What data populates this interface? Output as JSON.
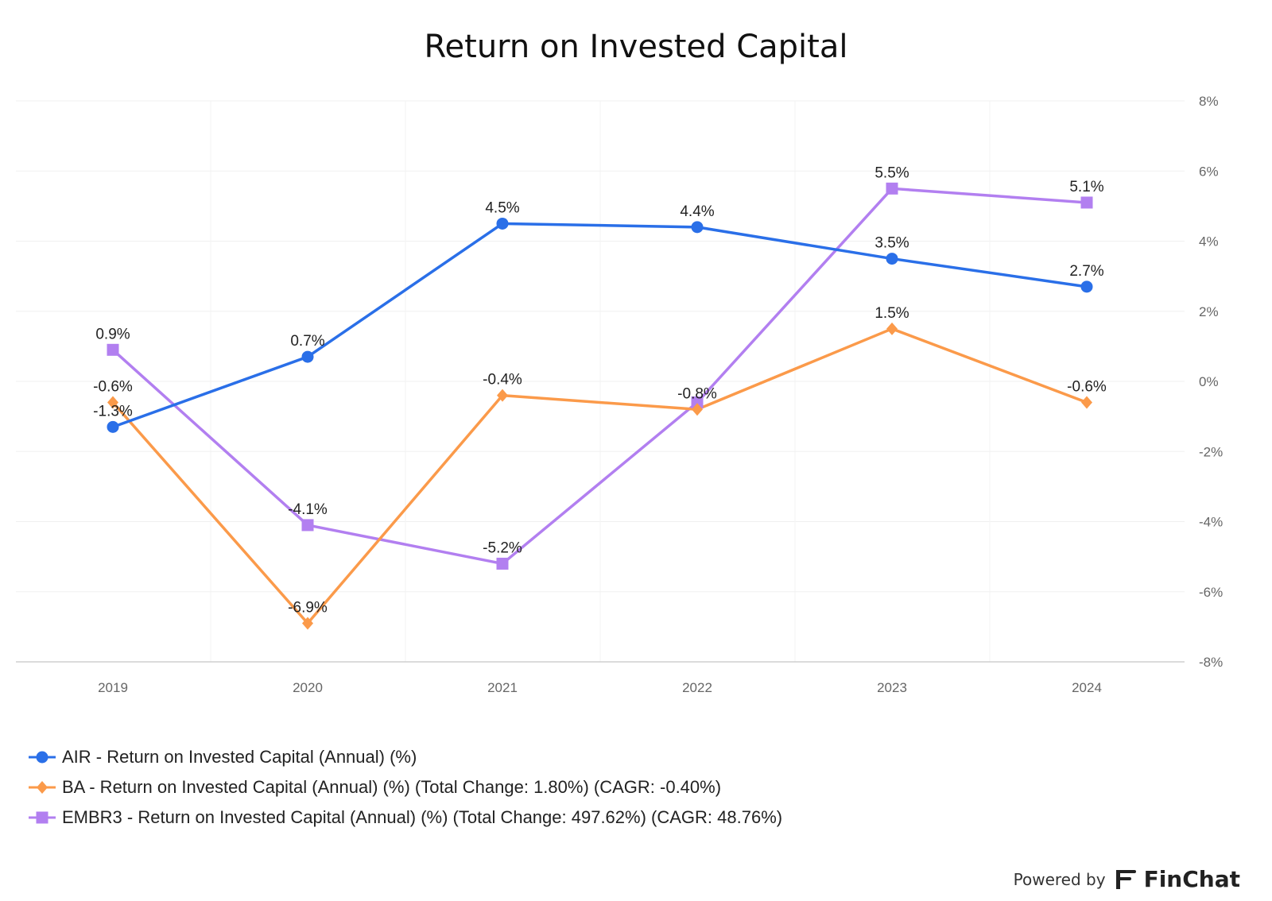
{
  "chart_data": {
    "type": "line",
    "title": "Return on Invested Capital",
    "categories": [
      "2019",
      "2020",
      "2021",
      "2022",
      "2023",
      "2024"
    ],
    "y_axis": {
      "position": "right",
      "min": -8,
      "max": 8,
      "step": 2,
      "tick_labels": [
        "8%",
        "6%",
        "4%",
        "2%",
        "0%",
        "-2%",
        "-4%",
        "-6%",
        "-8%"
      ]
    },
    "grid": true,
    "legend_position": "bottom-left",
    "series": [
      {
        "name": "AIR - Return on Invested Capital (Annual) (%)",
        "color": "#2a6fe8",
        "marker": "circle",
        "values": [
          -1.3,
          0.7,
          4.5,
          4.4,
          3.5,
          2.7
        ],
        "labels": [
          "-1.3%",
          "0.7%",
          "4.5%",
          "4.4%",
          "3.5%",
          "2.7%"
        ]
      },
      {
        "name": "BA - Return on Invested Capital (Annual) (%) (Total Change: 1.80%) (CAGR: -0.40%)",
        "color": "#fb9a4a",
        "marker": "diamond",
        "values": [
          -0.6,
          -6.9,
          -0.4,
          -0.8,
          1.5,
          -0.6
        ],
        "labels": [
          "-0.6%",
          "-6.9%",
          "-0.4%",
          "-0.8%",
          "1.5%",
          "-0.6%"
        ]
      },
      {
        "name": "EMBR3 - Return on Invested Capital (Annual) (%) (Total Change: 497.62%) (CAGR: 48.76%)",
        "color": "#b27ff0",
        "marker": "square",
        "values": [
          0.9,
          -4.1,
          -5.2,
          -0.6,
          5.5,
          5.1
        ],
        "labels": [
          "0.9%",
          "-4.1%",
          "-5.2%",
          "",
          "5.5%",
          "5.1%"
        ]
      }
    ]
  },
  "footer": {
    "powered_by": "Powered by",
    "brand": "FinChat"
  }
}
